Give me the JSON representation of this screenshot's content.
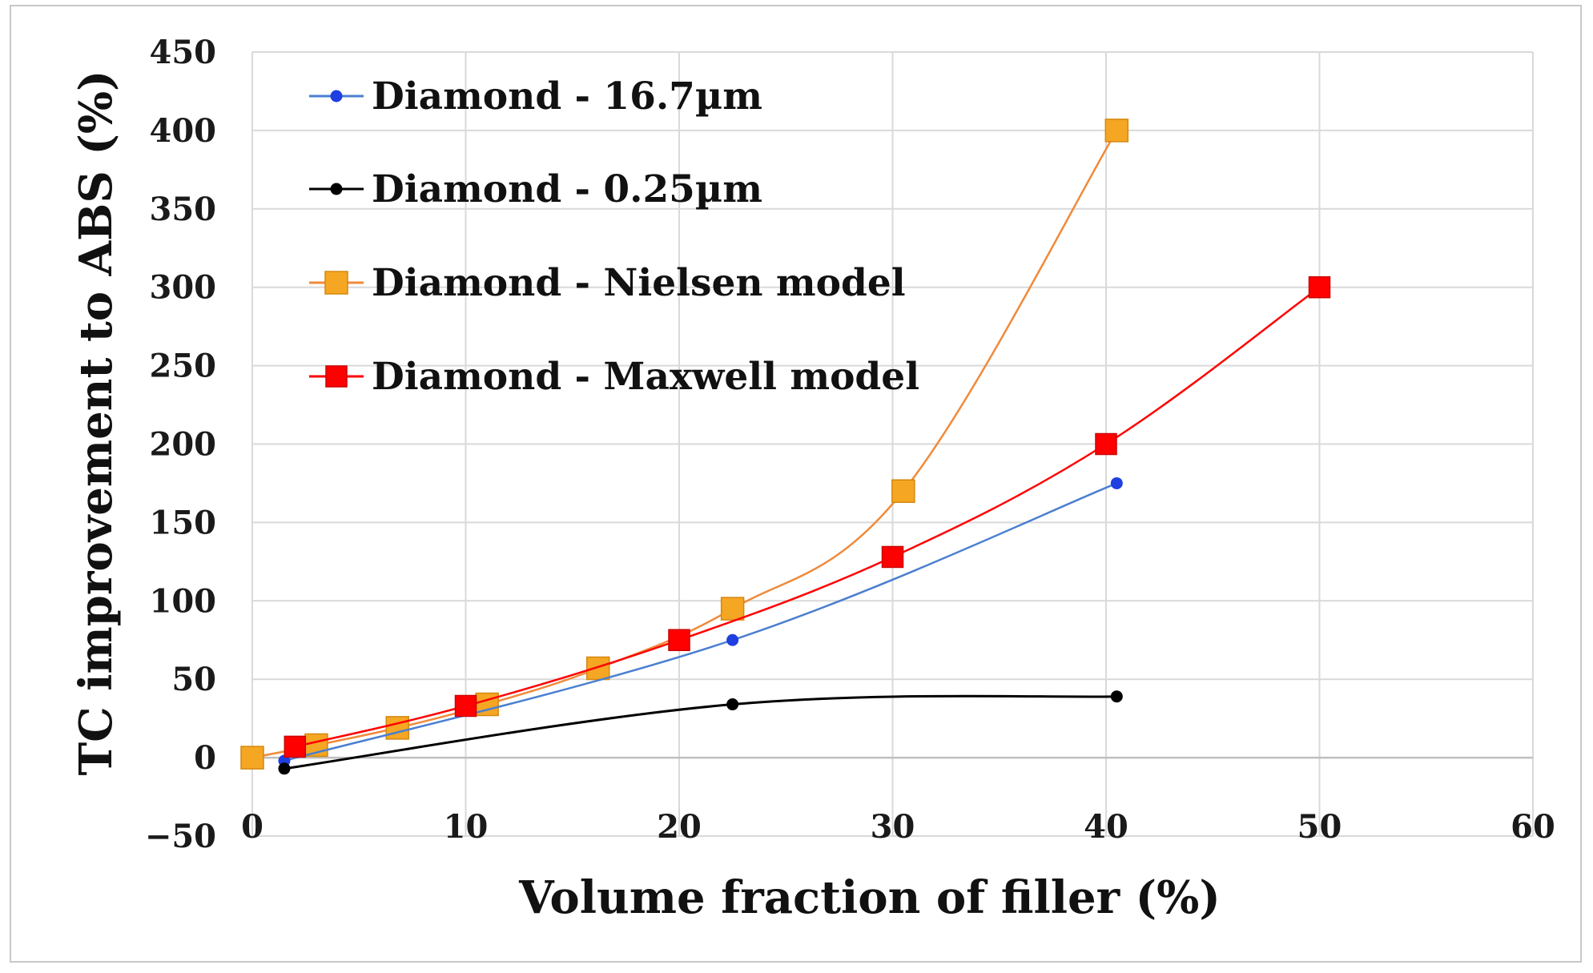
{
  "chart_data": {
    "type": "line",
    "title": "",
    "xlabel": "Volume fraction of filler (%)",
    "ylabel": "TC improvement to ABS (%)",
    "xlim": [
      0,
      60
    ],
    "ylim": [
      -50,
      450
    ],
    "xticks": [
      0,
      10,
      20,
      30,
      40,
      50,
      60
    ],
    "yticks": [
      -50,
      0,
      50,
      100,
      150,
      200,
      250,
      300,
      350,
      400,
      450
    ],
    "xtick_labels": [
      "0",
      "10",
      "20",
      "30",
      "40",
      "50",
      "60"
    ],
    "ytick_labels": [
      "−50",
      "0",
      "50",
      "100",
      "150",
      "200",
      "250",
      "300",
      "350",
      "400",
      "450"
    ],
    "grid": true,
    "legend_position": "top-left",
    "series": [
      {
        "name": "Diamond - 16.7µm",
        "color": "#1f3fe0",
        "line_color": "#4a7fd0",
        "marker": "circle",
        "x": [
          1.5,
          22.5,
          40.5
        ],
        "y": [
          -2,
          75,
          175
        ]
      },
      {
        "name": "Diamond - 0.25µm",
        "color": "#000000",
        "line_color": "#000000",
        "marker": "circle",
        "x": [
          1.5,
          22.5,
          40.5
        ],
        "y": [
          -7,
          34,
          39
        ]
      },
      {
        "name": "Diamond - Nielsen model",
        "color": "#f5a623",
        "line_color": "#f08a3a",
        "marker": "square",
        "x": [
          0,
          3,
          6.8,
          11,
          16.2,
          22.5,
          30.5,
          40.5
        ],
        "y": [
          0,
          8,
          19,
          34,
          57,
          95,
          170,
          400
        ]
      },
      {
        "name": "Diamond - Maxwell model",
        "color": "#ff0000",
        "line_color": "#ff0000",
        "marker": "square",
        "x": [
          2,
          10,
          20,
          30,
          40,
          50
        ],
        "y": [
          7,
          33,
          75,
          128,
          200,
          300
        ]
      }
    ]
  }
}
